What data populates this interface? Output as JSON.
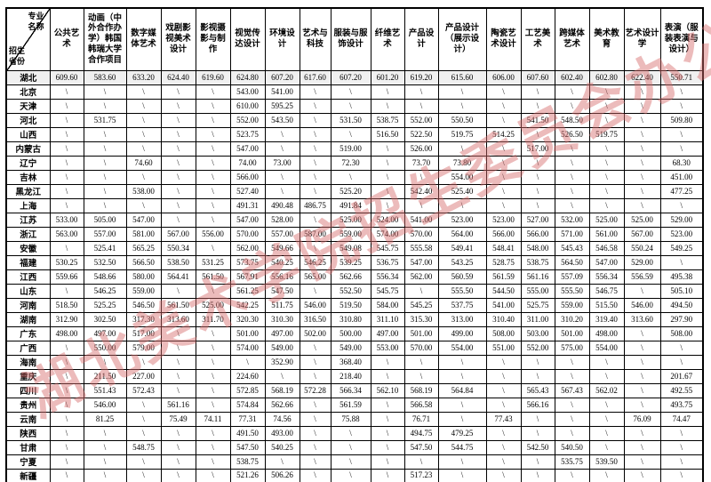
{
  "page": {
    "background": "#ffffff"
  },
  "colors": {
    "border": "#000000",
    "first_row_bg": "#f0f0f0",
    "watermark_red": "#d66a6a"
  },
  "watermark": {
    "text": "湖北美术学院招生委员会办公室"
  },
  "table": {
    "empty_marker": "\\",
    "corner": {
      "top_right": "专业名称",
      "bottom_left": "招生省份"
    },
    "columns": [
      "公共艺术",
      "动画（中外合作办学）韩国韩瑞大学合作项目",
      "数字媒体艺术",
      "戏剧影视美术设计",
      "影视摄影与制作",
      "视觉传达设计",
      "环境设计",
      "艺术与科技",
      "服装与服饰设计",
      "纤维艺术",
      "产品设计",
      "产品设计（展示设计）",
      "陶瓷艺术设计",
      "工艺美术",
      "跨媒体艺术",
      "美术教育",
      "艺术设计学",
      "表演（服装表演与设计）"
    ],
    "rows": [
      {
        "province": "湖北",
        "values": [
          "609.60",
          "583.60",
          "633.20",
          "624.40",
          "619.60",
          "624.80",
          "607.20",
          "617.60",
          "607.20",
          "601.20",
          "619.20",
          "615.60",
          "606.00",
          "607.60",
          "602.40",
          "602.80",
          "622.40",
          "550.71"
        ]
      },
      {
        "province": "北京",
        "values": [
          "\\",
          "\\",
          "\\",
          "\\",
          "\\",
          "543.00",
          "541.00",
          "\\",
          "\\",
          "\\",
          "\\",
          "\\",
          "\\",
          "\\",
          "\\",
          "\\",
          "\\",
          "\\"
        ]
      },
      {
        "province": "天津",
        "values": [
          "\\",
          "\\",
          "\\",
          "\\",
          "\\",
          "610.00",
          "595.25",
          "\\",
          "\\",
          "\\",
          "\\",
          "\\",
          "\\",
          "\\",
          "\\",
          "\\",
          "\\",
          "\\"
        ]
      },
      {
        "province": "河北",
        "values": [
          "\\",
          "531.75",
          "\\",
          "\\",
          "\\",
          "552.00",
          "543.50",
          "\\",
          "531.50",
          "538.75",
          "552.00",
          "550.50",
          "\\",
          "541.50",
          "548.50",
          "\\",
          "\\",
          "509.80"
        ]
      },
      {
        "province": "山西",
        "values": [
          "\\",
          "\\",
          "\\",
          "\\",
          "\\",
          "523.75",
          "\\",
          "\\",
          "\\",
          "516.50",
          "522.50",
          "519.75",
          "514.25",
          "\\",
          "526.50",
          "519.75",
          "\\",
          "\\"
        ]
      },
      {
        "province": "内蒙古",
        "values": [
          "\\",
          "\\",
          "\\",
          "\\",
          "\\",
          "547.00",
          "\\",
          "\\",
          "519.00",
          "\\",
          "526.00",
          "\\",
          "\\",
          "517.00",
          "\\",
          "\\",
          "\\",
          "\\"
        ]
      },
      {
        "province": "辽宁",
        "values": [
          "\\",
          "\\",
          "74.60",
          "\\",
          "\\",
          "74.00",
          "73.00",
          "\\",
          "72.30",
          "\\",
          "73.70",
          "73.80",
          "\\",
          "\\",
          "\\",
          "\\",
          "\\",
          "68.30"
        ]
      },
      {
        "province": "吉林",
        "values": [
          "\\",
          "\\",
          "\\",
          "\\",
          "\\",
          "566.00",
          "\\",
          "\\",
          "\\",
          "\\",
          "\\",
          "554.00",
          "\\",
          "\\",
          "\\",
          "\\",
          "\\",
          "451.00"
        ]
      },
      {
        "province": "黑龙江",
        "values": [
          "\\",
          "\\",
          "538.00",
          "\\",
          "\\",
          "527.40",
          "\\",
          "\\",
          "525.20",
          "\\",
          "542.40",
          "525.40",
          "\\",
          "\\",
          "\\",
          "\\",
          "\\",
          "477.25"
        ]
      },
      {
        "province": "上海",
        "values": [
          "\\",
          "\\",
          "\\",
          "\\",
          "\\",
          "491.31",
          "490.48",
          "486.75",
          "491.84",
          "\\",
          "\\",
          "\\",
          "\\",
          "\\",
          "\\",
          "\\",
          "\\",
          "\\"
        ]
      },
      {
        "province": "江苏",
        "values": [
          "533.00",
          "505.00",
          "547.00",
          "\\",
          "\\",
          "547.00",
          "528.00",
          "\\",
          "525.00",
          "524.00",
          "541.00",
          "523.00",
          "523.00",
          "527.00",
          "532.00",
          "525.00",
          "525.00",
          "529.00"
        ]
      },
      {
        "province": "浙江",
        "values": [
          "563.00",
          "557.00",
          "581.00",
          "567.00",
          "556.00",
          "570.00",
          "557.00",
          "587.00",
          "559.00",
          "574.00",
          "570.00",
          "564.00",
          "566.00",
          "566.00",
          "571.00",
          "561.00",
          "567.00",
          "523.00"
        ]
      },
      {
        "province": "安徽",
        "values": [
          "\\",
          "525.41",
          "565.25",
          "550.34",
          "\\",
          "562.00",
          "549.66",
          "\\",
          "549.08",
          "545.75",
          "555.58",
          "549.41",
          "548.41",
          "548.00",
          "545.43",
          "546.58",
          "550.24",
          "549.25"
        ]
      },
      {
        "province": "福建",
        "values": [
          "530.25",
          "532.50",
          "566.50",
          "538.50",
          "531.25",
          "573.75",
          "540.25",
          "546.25",
          "539.25",
          "536.75",
          "547.00",
          "543.25",
          "528.75",
          "538.75",
          "564.50",
          "547.00",
          "529.00",
          "\\"
        ]
      },
      {
        "province": "江西",
        "values": [
          "559.66",
          "548.66",
          "580.00",
          "564.41",
          "561.50",
          "567.91",
          "556.16",
          "565.00",
          "562.66",
          "556.34",
          "562.00",
          "560.59",
          "561.59",
          "561.16",
          "557.09",
          "556.34",
          "556.59",
          "495.38"
        ]
      },
      {
        "province": "山东",
        "values": [
          "\\",
          "546.25",
          "559.00",
          "\\",
          "\\",
          "561.25",
          "547.50",
          "\\",
          "552.50",
          "545.75",
          "\\",
          "555.50",
          "544.50",
          "555.00",
          "555.50",
          "546.75",
          "\\",
          "505.10"
        ]
      },
      {
        "province": "河南",
        "values": [
          "518.50",
          "525.25",
          "546.50",
          "561.50",
          "525.00",
          "542.25",
          "511.75",
          "546.00",
          "519.50",
          "584.00",
          "545.25",
          "537.75",
          "541.00",
          "525.75",
          "559.00",
          "515.50",
          "546.00",
          "494.50"
        ]
      },
      {
        "province": "湖南",
        "values": [
          "312.90",
          "302.50",
          "317.30",
          "313.60",
          "311.70",
          "320.30",
          "310.30",
          "316.50",
          "310.80",
          "311.10",
          "315.30",
          "313.00",
          "310.40",
          "311.00",
          "310.20",
          "319.40",
          "313.60",
          "297.90"
        ]
      },
      {
        "province": "广东",
        "values": [
          "498.00",
          "497.00",
          "517.00",
          "\\",
          "\\",
          "501.00",
          "497.00",
          "502.00",
          "500.00",
          "497.00",
          "501.00",
          "499.00",
          "508.00",
          "503.00",
          "501.00",
          "498.00",
          "\\",
          "508.00"
        ]
      },
      {
        "province": "广西",
        "values": [
          "\\",
          "550.00",
          "579.00",
          "\\",
          "\\",
          "574.00",
          "549.00",
          "\\",
          "549.00",
          "553.00",
          "570.00",
          "554.00",
          "551.00",
          "552.00",
          "575.00",
          "554.00",
          "\\",
          "\\"
        ]
      },
      {
        "province": "海南",
        "values": [
          "\\",
          "\\",
          "\\",
          "\\",
          "\\",
          "\\",
          "352.90",
          "\\",
          "368.40",
          "\\",
          "\\",
          "\\",
          "\\",
          "\\",
          "\\",
          "\\",
          "\\",
          "\\"
        ]
      },
      {
        "province": "重庆",
        "values": [
          "\\",
          "211.50",
          "227.00",
          "\\",
          "\\",
          "224.60",
          "\\",
          "\\",
          "218.40",
          "\\",
          "\\",
          "\\",
          "\\",
          "\\",
          "\\",
          "\\",
          "\\",
          "201.67"
        ]
      },
      {
        "province": "四川",
        "values": [
          "\\",
          "551.43",
          "572.43",
          "\\",
          "\\",
          "572.85",
          "568.19",
          "572.28",
          "566.34",
          "562.10",
          "568.19",
          "564.84",
          "\\",
          "565.43",
          "567.43",
          "562.02",
          "\\",
          "492.55"
        ]
      },
      {
        "province": "贵州",
        "values": [
          "\\",
          "546.00",
          "\\",
          "561.16",
          "\\",
          "574.84",
          "562.66",
          "\\",
          "561.59",
          "\\",
          "566.58",
          "\\",
          "\\",
          "566.16",
          "\\",
          "\\",
          "\\",
          "493.75"
        ]
      },
      {
        "province": "云南",
        "values": [
          "\\",
          "81.25",
          "\\",
          "75.49",
          "74.11",
          "77.31",
          "74.56",
          "\\",
          "75.88",
          "\\",
          "76.71",
          "\\",
          "77.43",
          "\\",
          "\\",
          "\\",
          "76.09",
          "74.47"
        ]
      },
      {
        "province": "陕西",
        "values": [
          "\\",
          "\\",
          "\\",
          "\\",
          "\\",
          "491.50",
          "493.00",
          "\\",
          "\\",
          "\\",
          "494.75",
          "479.25",
          "\\",
          "\\",
          "\\",
          "\\",
          "\\",
          "\\"
        ]
      },
      {
        "province": "甘肃",
        "values": [
          "\\",
          "\\",
          "548.75",
          "\\",
          "\\",
          "547.50",
          "540.25",
          "\\",
          "\\",
          "\\",
          "547.50",
          "544.75",
          "\\",
          "542.50",
          "540.50",
          "\\",
          "\\",
          "\\"
        ]
      },
      {
        "province": "宁夏",
        "values": [
          "\\",
          "\\",
          "\\",
          "\\",
          "\\",
          "538.75",
          "\\",
          "\\",
          "\\",
          "\\",
          "\\",
          "\\",
          "\\",
          "\\",
          "535.75",
          "539.50",
          "\\",
          "\\"
        ]
      },
      {
        "province": "新疆",
        "values": [
          "\\",
          "\\",
          "\\",
          "\\",
          "\\",
          "521.26",
          "506.26",
          "\\",
          "\\",
          "\\",
          "517.23",
          "\\",
          "\\",
          "\\",
          "\\",
          "\\",
          "\\",
          "\\"
        ]
      }
    ]
  }
}
